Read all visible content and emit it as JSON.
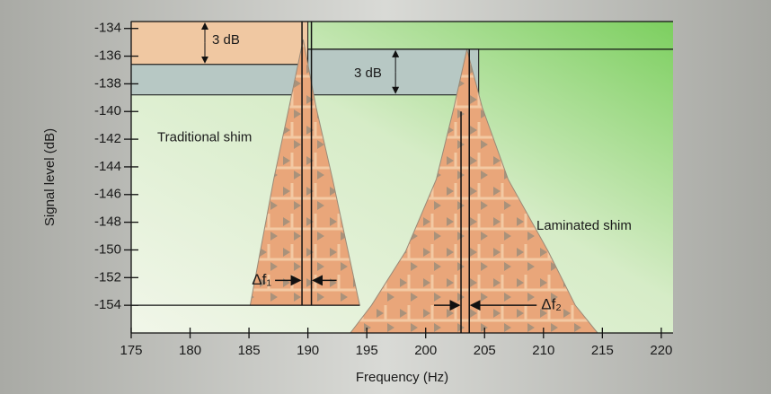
{
  "chart_data": {
    "type": "area",
    "x_label": "Frequency (Hz)",
    "y_label": "Signal level (dB)",
    "xlim": [
      175,
      221
    ],
    "ylim": [
      -156,
      -133.5
    ],
    "xticks": [
      175,
      180,
      185,
      190,
      195,
      200,
      205,
      210,
      215,
      220
    ],
    "yticks": [
      -134,
      -136,
      -138,
      -140,
      -142,
      -144,
      -146,
      -148,
      -150,
      -152,
      -154
    ],
    "series": [
      {
        "name": "Traditional shim",
        "color": "#e9a67a",
        "x": [
          185.1,
          187.1,
          188.4,
          189.6,
          190.7,
          192.1,
          194.4
        ],
        "values": [
          -154,
          -144.9,
          -139.7,
          -134.8,
          -139.7,
          -144.9,
          -154
        ]
      },
      {
        "name": "Laminated shim",
        "color": "#e9a67a",
        "x": [
          193.6,
          195.4,
          198.3,
          200.9,
          202.4,
          203.5,
          204.8,
          207,
          210.4,
          212.7,
          214.6
        ],
        "values": [
          -156,
          -154,
          -150.1,
          -144.9,
          -139.7,
          -135.5,
          -139.7,
          -144.9,
          -150.1,
          -154,
          -156
        ]
      }
    ],
    "bands": [
      {
        "x": [
          175,
          190
        ],
        "y": [
          -136.6,
          -133.5
        ],
        "color": "#f0c8a2"
      },
      {
        "x": [
          175,
          190
        ],
        "y": [
          -138.8,
          -136.6
        ],
        "color": "#b7c8c4"
      },
      {
        "x": [
          190,
          204.5
        ],
        "y": [
          -138.8,
          -135.5
        ],
        "color": "#b7c8c4"
      }
    ],
    "bandwidth": [
      {
        "label": "Δf₁",
        "x": [
          189.5,
          190.3
        ]
      },
      {
        "label": "Δf₂",
        "x": [
          203,
          203.7
        ]
      }
    ],
    "annotations": [
      "3 dB",
      "3 dB"
    ]
  }
}
